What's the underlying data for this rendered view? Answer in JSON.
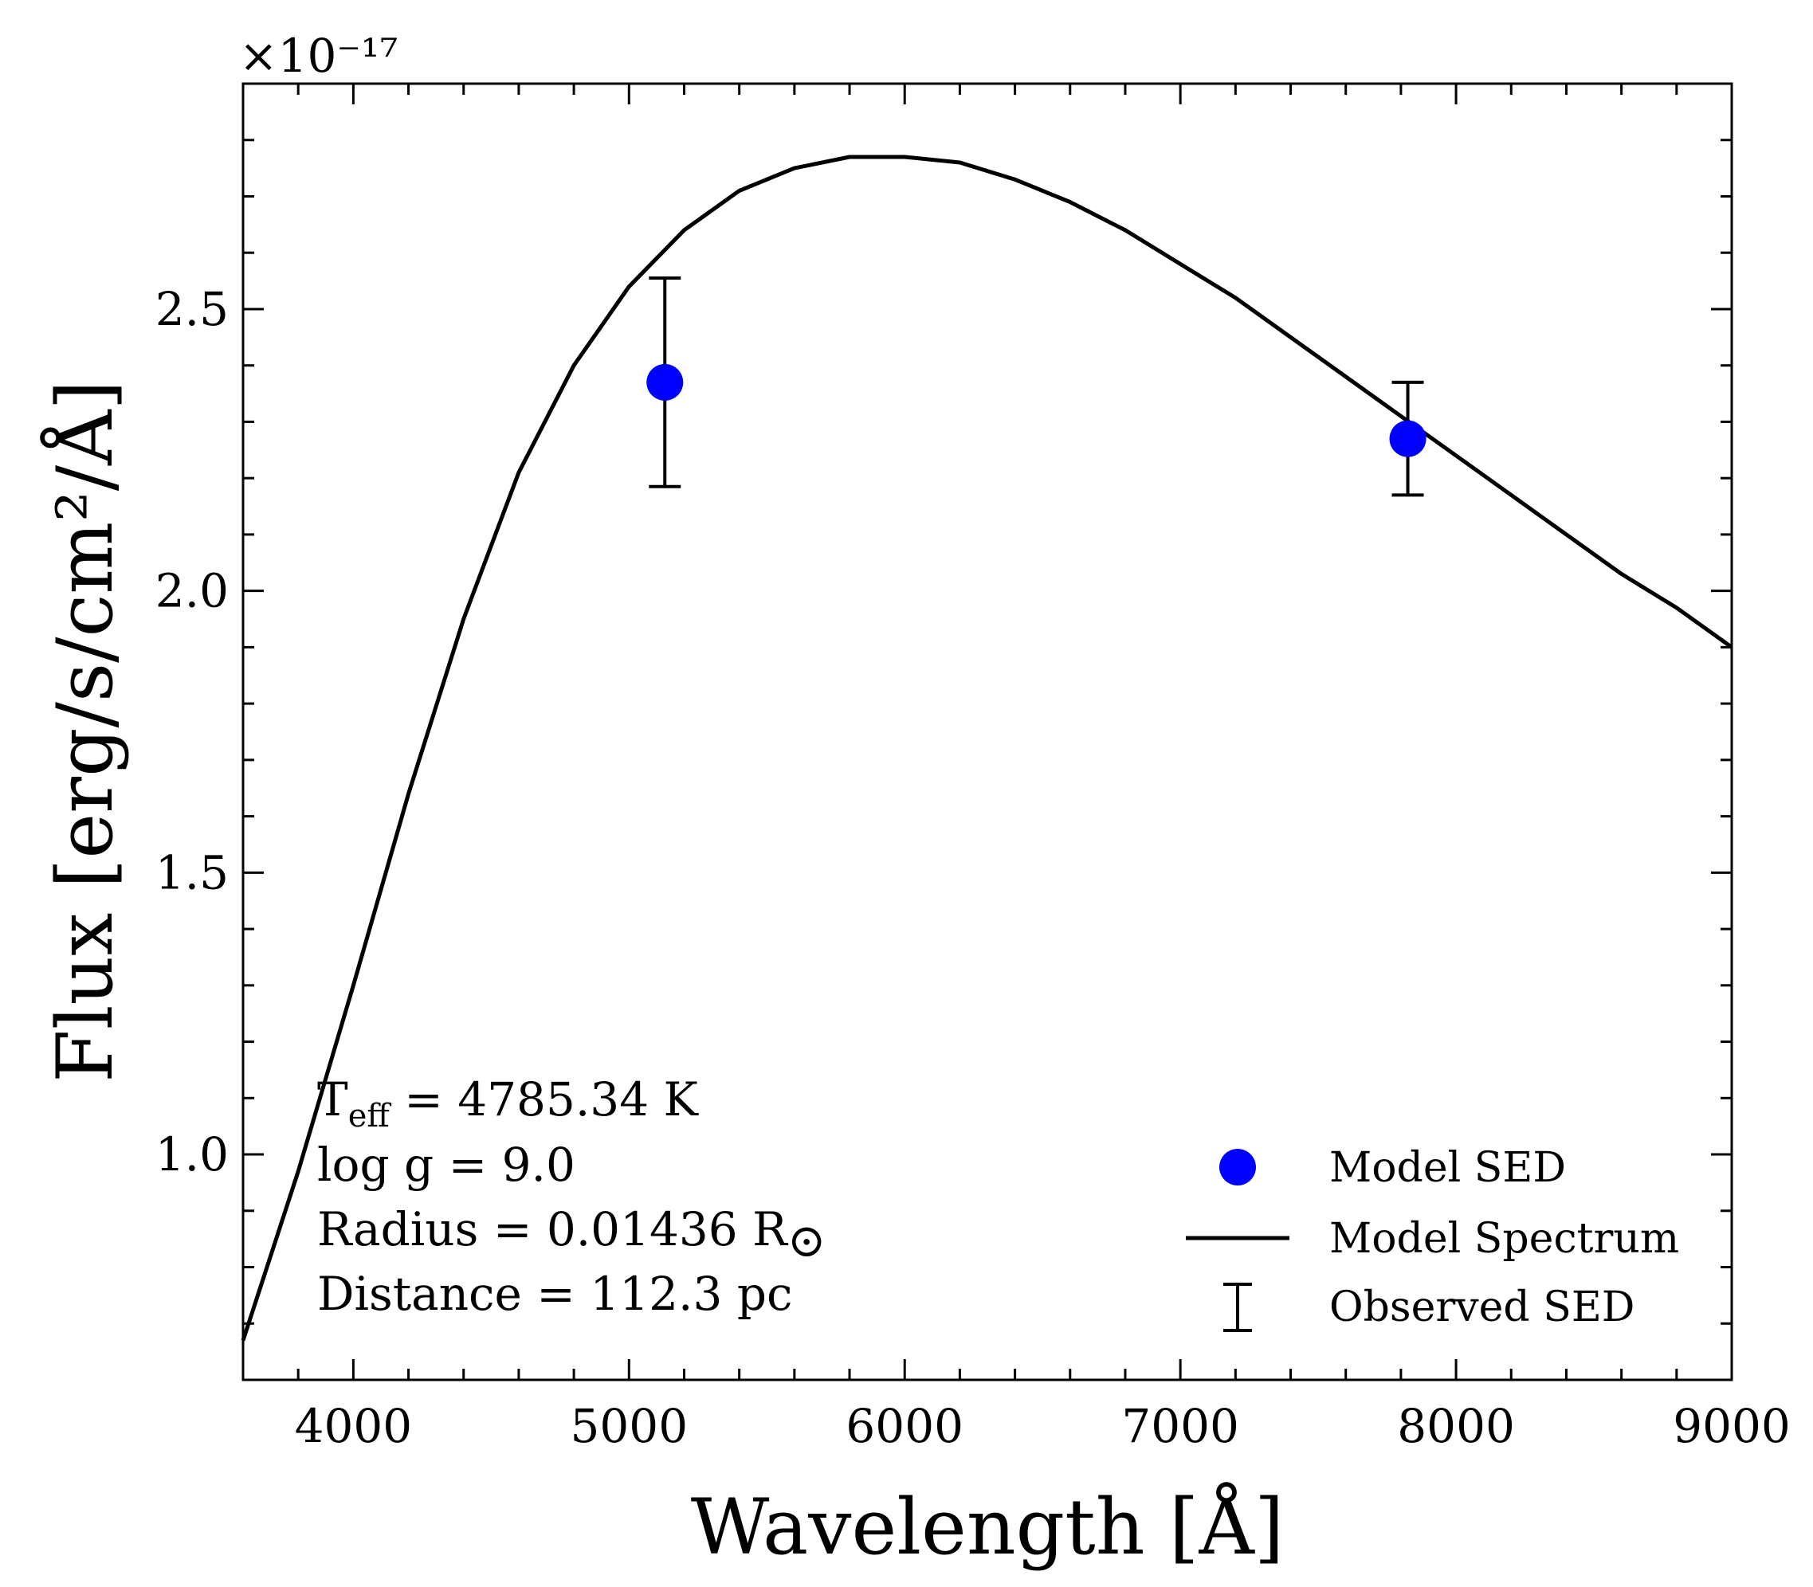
{
  "chart_data": {
    "type": "scatter",
    "xlabel": "Wavelength [Å]",
    "ylabel": "Flux [erg/s/cm²/Å]",
    "y_multiplier": "×10⁻¹⁷",
    "xlim": [
      3600,
      9000
    ],
    "ylim": [
      0.6,
      2.9
    ],
    "x_ticks": [
      4000,
      5000,
      6000,
      7000,
      8000,
      9000
    ],
    "x_tick_labels": [
      "4000",
      "5000",
      "6000",
      "7000",
      "8000",
      "9000"
    ],
    "y_ticks": [
      1.0,
      1.5,
      2.0,
      2.5
    ],
    "y_tick_labels": [
      "1.0",
      "1.5",
      "2.0",
      "2.5"
    ],
    "grid": false,
    "legend_position": "bottom-right",
    "series": [
      {
        "name": "Model SED",
        "kind": "points",
        "color": "#0000ff",
        "x": [
          5130,
          7825
        ],
        "y": [
          2.37,
          2.27
        ]
      },
      {
        "name": "Model Spectrum",
        "kind": "line",
        "color": "#000000",
        "x": [
          3600,
          3800,
          4000,
          4200,
          4400,
          4600,
          4800,
          5000,
          5200,
          5400,
          5600,
          5800,
          6000,
          6200,
          6400,
          6600,
          6800,
          7000,
          7200,
          7400,
          7600,
          7800,
          8000,
          8200,
          8400,
          8600,
          8800,
          9000
        ],
        "y": [
          0.67,
          0.97,
          1.3,
          1.64,
          1.95,
          2.21,
          2.4,
          2.54,
          2.64,
          2.71,
          2.75,
          2.77,
          2.77,
          2.76,
          2.73,
          2.69,
          2.64,
          2.58,
          2.52,
          2.45,
          2.38,
          2.31,
          2.24,
          2.17,
          2.1,
          2.03,
          1.97,
          1.9
        ]
      },
      {
        "name": "Observed SED",
        "kind": "errorbar",
        "color": "#000000",
        "x": [
          5130,
          7825
        ],
        "y": [
          2.37,
          2.27
        ],
        "yerr": [
          0.185,
          0.1
        ]
      }
    ]
  },
  "annotations": {
    "teff_label": "T",
    "teff_sub": "eff",
    "teff_value": " = 4785.34 K",
    "logg": "log g = 9.0",
    "radius": "Radius = 0.01436 R",
    "sun_symbol": "⊙",
    "distance": "Distance = 112.3 pc"
  }
}
